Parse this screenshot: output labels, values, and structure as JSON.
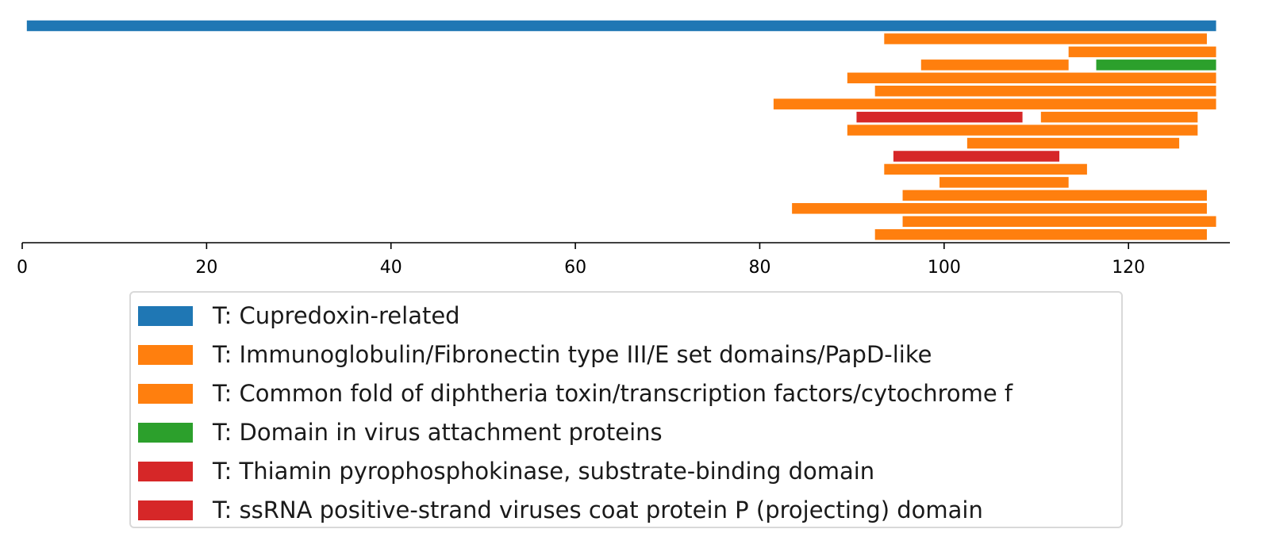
{
  "chart_data": {
    "type": "bar",
    "orientation": "horizontal-range",
    "xlim": [
      0,
      131
    ],
    "xticks": [
      0,
      20,
      40,
      60,
      80,
      100,
      120
    ],
    "xlabel": "",
    "ylabel": "",
    "grid": false,
    "legend_position": "bottom",
    "series": [
      {
        "name": "T: Cupredoxin-related",
        "color": "#1f77b4"
      },
      {
        "name": "T: Immunoglobulin/Fibronectin type III/E set domains/PapD-like",
        "color": "#ff7f0e"
      },
      {
        "name": "T: Common fold of diphtheria toxin/transcription factors/cytochrome f",
        "color": "#ff7f0e"
      },
      {
        "name": "T: Domain in virus attachment proteins",
        "color": "#2ca02c"
      },
      {
        "name": "T: Thiamin pyrophosphokinase, substrate-binding domain",
        "color": "#d62728"
      },
      {
        "name": "T: ssRNA positive-strand viruses coat protein P (projecting) domain",
        "color": "#d62728"
      }
    ],
    "bars": [
      {
        "row": 0,
        "start": 0.5,
        "end": 129.5,
        "series": 0
      },
      {
        "row": 1,
        "start": 93.5,
        "end": 128.5,
        "series": 1
      },
      {
        "row": 2,
        "start": 113.5,
        "end": 129.5,
        "series": 1
      },
      {
        "row": 3,
        "start": 97.5,
        "end": 113.5,
        "series": 1
      },
      {
        "row": 3,
        "start": 116.5,
        "end": 129.5,
        "series": 3
      },
      {
        "row": 4,
        "start": 89.5,
        "end": 129.5,
        "series": 1
      },
      {
        "row": 5,
        "start": 92.5,
        "end": 129.5,
        "series": 1
      },
      {
        "row": 6,
        "start": 81.5,
        "end": 129.5,
        "series": 1
      },
      {
        "row": 7,
        "start": 90.5,
        "end": 108.5,
        "series": 4
      },
      {
        "row": 7,
        "start": 110.5,
        "end": 127.5,
        "series": 1
      },
      {
        "row": 8,
        "start": 89.5,
        "end": 127.5,
        "series": 1
      },
      {
        "row": 9,
        "start": 102.5,
        "end": 125.5,
        "series": 1
      },
      {
        "row": 10,
        "start": 94.5,
        "end": 112.5,
        "series": 5
      },
      {
        "row": 11,
        "start": 93.5,
        "end": 115.5,
        "series": 1
      },
      {
        "row": 12,
        "start": 99.5,
        "end": 113.5,
        "series": 1
      },
      {
        "row": 13,
        "start": 95.5,
        "end": 128.5,
        "series": 2
      },
      {
        "row": 14,
        "start": 83.5,
        "end": 128.5,
        "series": 1
      },
      {
        "row": 15,
        "start": 95.5,
        "end": 129.5,
        "series": 1
      },
      {
        "row": 16,
        "start": 92.5,
        "end": 128.5,
        "series": 1
      }
    ]
  }
}
